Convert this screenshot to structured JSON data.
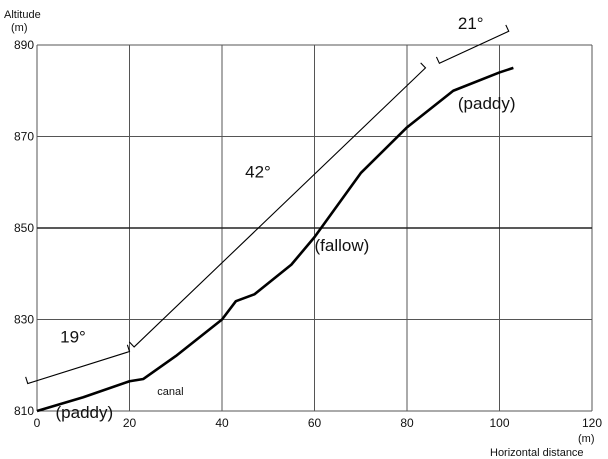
{
  "chart_data": {
    "type": "line",
    "title": "",
    "ylabel": "Altitude",
    "yunit": "(m)",
    "xlabel": "Horizontal distance",
    "xunit": "(m)",
    "xlim": [
      0,
      120
    ],
    "ylim": [
      810,
      890
    ],
    "xticks": [
      0,
      20,
      40,
      60,
      80,
      100,
      120
    ],
    "yticks": [
      810,
      830,
      850,
      870,
      890
    ],
    "grid": true,
    "highlight_y": 850,
    "series": [
      {
        "x": [
          0,
          10,
          20,
          23,
          30,
          40,
          43,
          47,
          55,
          60,
          65,
          70,
          80,
          90,
          100,
          103
        ],
        "y": [
          810,
          813,
          816.5,
          817,
          822,
          830,
          834,
          835.5,
          842,
          848,
          855,
          862,
          872,
          880,
          884,
          885
        ]
      }
    ],
    "slope_brackets": [
      {
        "label": "19°",
        "x1": -2,
        "y1": 816,
        "x2": 20,
        "y2": 823
      },
      {
        "label": "42°",
        "x1": 21,
        "y1": 824,
        "x2": 84,
        "y2": 885
      },
      {
        "label": "21°",
        "x1": 87,
        "y1": 886,
        "x2": 102,
        "y2": 893
      }
    ],
    "annotations": [
      {
        "text": "(paddy)",
        "x": 4,
        "y": 808.5,
        "size": "big"
      },
      {
        "text": "canal",
        "x": 26,
        "y": 813.5,
        "size": "small"
      },
      {
        "text": "(fallow)",
        "x": 60,
        "y": 845,
        "size": "big"
      },
      {
        "text": "(paddy)",
        "x": 91,
        "y": 876,
        "size": "big"
      },
      {
        "text": "19°",
        "x": 5,
        "y": 825,
        "size": "big"
      },
      {
        "text": "42°",
        "x": 45,
        "y": 861,
        "size": "big"
      },
      {
        "text": "21°",
        "x": 91,
        "y": 893.5,
        "size": "big"
      }
    ]
  }
}
